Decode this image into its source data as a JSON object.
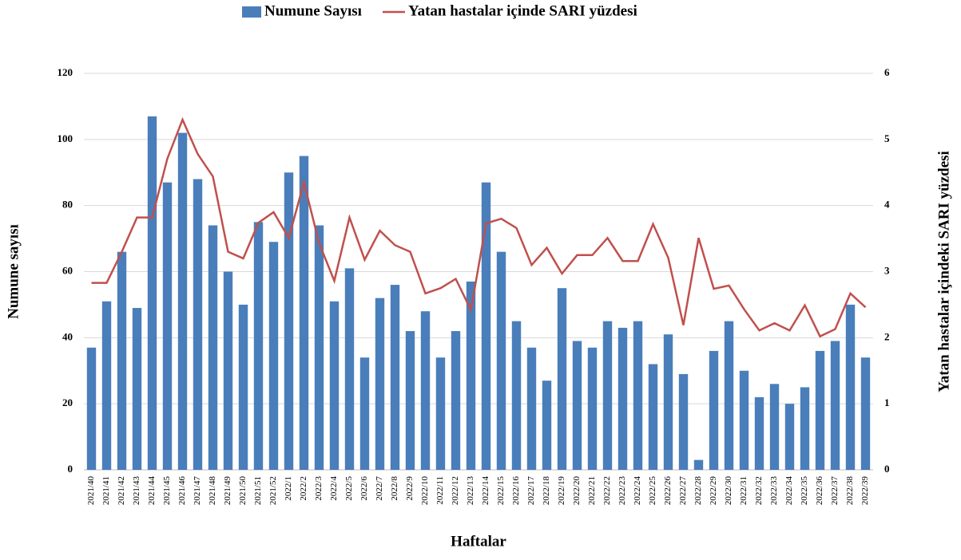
{
  "chart_data": {
    "type": "bar+line",
    "x_label": "Haftalar",
    "y_label": "Numune sayısı",
    "y2_label": "Yatan hastalar içindeki SARI yüzdesi",
    "categories": [
      "2021/40",
      "2021/41",
      "2021/42",
      "2021/43",
      "2021/44",
      "2021/45",
      "2021/46",
      "2021/47",
      "2021/48",
      "2021/49",
      "2021/50",
      "2021/51",
      "2021/52",
      "2022/1",
      "2022/2",
      "2022/3",
      "2022/4",
      "2022/5",
      "2022/6",
      "2022/7",
      "2022/8",
      "2022/9",
      "2022/10",
      "2022/11",
      "2022/12",
      "2022/13",
      "2022/14",
      "2022/15",
      "2022/16",
      "2022/17",
      "2022/18",
      "2022/19",
      "2022/20",
      "2022/21",
      "2022/22",
      "2022/23",
      "2022/24",
      "2022/25",
      "2022/26",
      "2022/27",
      "2022/28",
      "2022/29",
      "2022/30",
      "2022/31",
      "2022/32",
      "2022/33",
      "2022/34",
      "2022/35",
      "2022/36",
      "2022/37",
      "2022/38",
      "2022/39"
    ],
    "series": [
      {
        "name": "Numune Sayısı",
        "type": "bar",
        "color": "#4a7ebb",
        "values": [
          37,
          51,
          66,
          49,
          107,
          87,
          102,
          88,
          74,
          60,
          50,
          75,
          69,
          90,
          95,
          74,
          51,
          61,
          34,
          52,
          56,
          42,
          48,
          34,
          42,
          57,
          87,
          66,
          45,
          37,
          27,
          55,
          39,
          37,
          45,
          43,
          45,
          32,
          41,
          29,
          3,
          36,
          45,
          30,
          22,
          26,
          20,
          25,
          36,
          39,
          50,
          34
        ]
      },
      {
        "name": "Yatan hastalar içinde SARI yüzdesi",
        "type": "line",
        "axis": "y2",
        "color": "#c0504d",
        "values": [
          2.83,
          2.83,
          3.3,
          3.82,
          3.82,
          4.71,
          5.3,
          4.78,
          4.44,
          3.3,
          3.2,
          3.74,
          3.9,
          3.51,
          4.35,
          3.43,
          2.86,
          3.82,
          3.18,
          3.62,
          3.4,
          3.3,
          2.67,
          2.75,
          2.89,
          2.42,
          3.73,
          3.8,
          3.66,
          3.1,
          3.36,
          2.97,
          3.25,
          3.25,
          3.51,
          3.16,
          3.16,
          3.72,
          3.21,
          2.19,
          3.51,
          2.74,
          2.79,
          2.43,
          2.11,
          2.22,
          2.11,
          2.49,
          2.02,
          2.13,
          2.67,
          2.46
        ]
      }
    ],
    "ylim": [
      0,
      120
    ],
    "yticks": [
      0,
      20,
      40,
      60,
      80,
      100,
      120
    ],
    "y2lim": [
      0,
      6
    ],
    "y2ticks": [
      0,
      1,
      2,
      3,
      4,
      5,
      6
    ],
    "grid": true,
    "legend": "top"
  }
}
